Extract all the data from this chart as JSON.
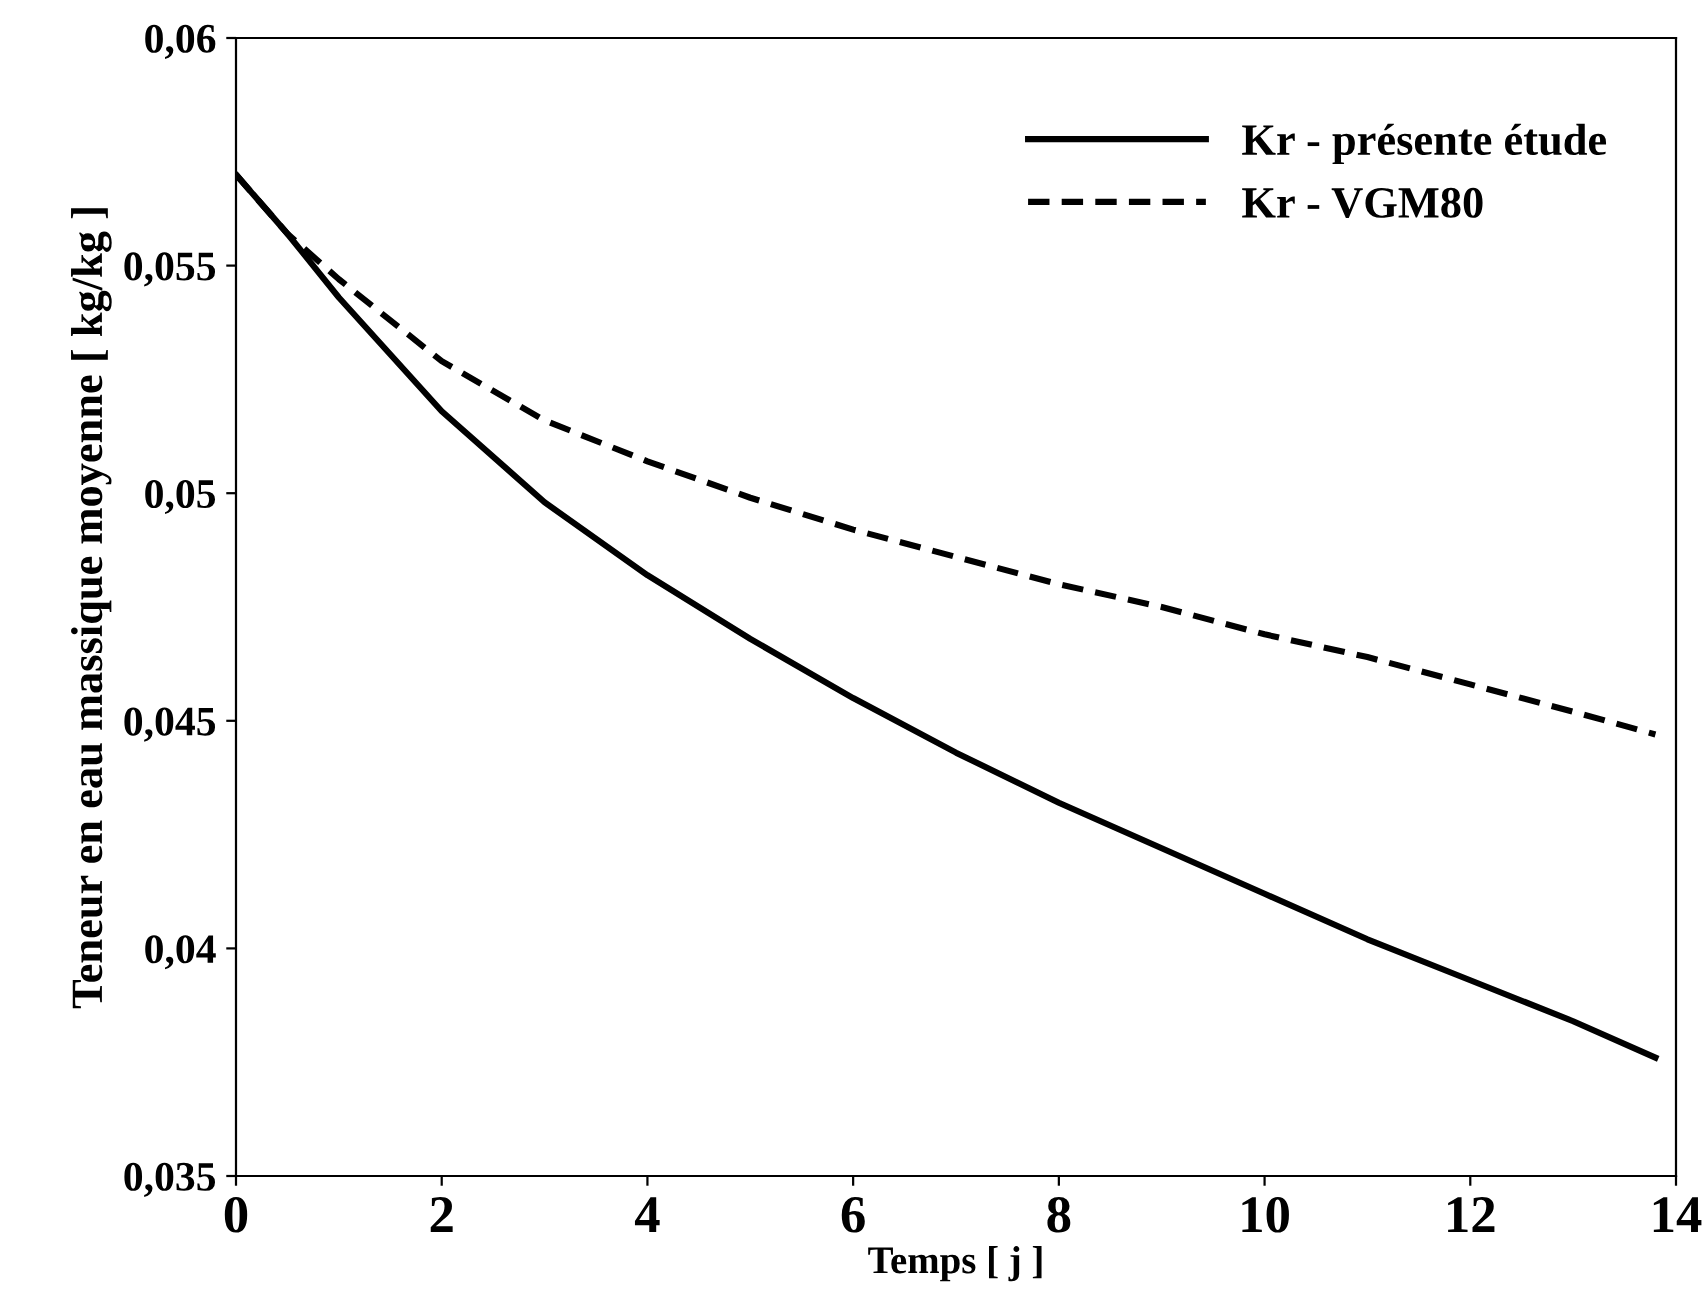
{
  "chart_data": {
    "type": "line",
    "xlabel": "Temps [ j ]",
    "ylabel": "Teneur en eau massique moyenne [ kg/kg ]",
    "x": [
      0,
      0.5,
      1,
      2,
      3,
      4,
      5,
      6,
      7,
      8,
      9,
      10,
      11,
      12,
      13,
      13.8
    ],
    "series": [
      {
        "name": "Kr - présente étude",
        "color": "#000000",
        "line_style": "solid",
        "values": [
          0.057,
          0.0557,
          0.0543,
          0.0518,
          0.0498,
          0.0482,
          0.0468,
          0.0455,
          0.0443,
          0.0432,
          0.0422,
          0.0412,
          0.0402,
          0.0393,
          0.0384,
          0.0376
        ]
      },
      {
        "name": "Kr - VGM80",
        "color": "#000000",
        "line_style": "dashed",
        "values": [
          0.057,
          0.0557,
          0.0547,
          0.0529,
          0.0516,
          0.0507,
          0.0499,
          0.0492,
          0.0486,
          0.048,
          0.0475,
          0.0469,
          0.0464,
          0.0458,
          0.0452,
          0.0447
        ]
      }
    ],
    "xlim": [
      0,
      14
    ],
    "xticks": [
      0,
      2,
      4,
      6,
      8,
      10,
      12,
      14
    ],
    "ylim": [
      0.035,
      0.06
    ],
    "yticks": [
      {
        "value": 0.035,
        "label": "0,035"
      },
      {
        "value": 0.04,
        "label": "0,04"
      },
      {
        "value": 0.045,
        "label": "0,045"
      },
      {
        "value": 0.05,
        "label": "0,05"
      },
      {
        "value": 0.055,
        "label": "0,055"
      },
      {
        "value": 0.06,
        "label": "0,06"
      }
    ],
    "legend": "top right",
    "grid": false
  }
}
